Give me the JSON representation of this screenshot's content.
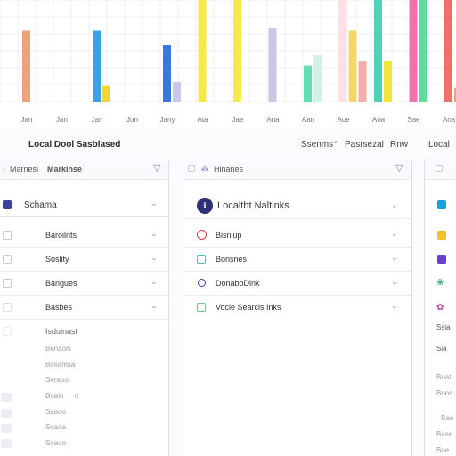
{
  "chart_data": {
    "type": "bar",
    "categories": [
      "Jan",
      "Jan",
      "Jan",
      "Jun",
      "Jany",
      "Ata",
      "Jae",
      "Ana",
      "Aan",
      "Aue",
      "Aoa",
      "Sae",
      "Ana"
    ],
    "xlabel": "",
    "ylabel": "",
    "grid": true,
    "ylim": [
      0,
      100
    ],
    "bars": [
      {
        "cat": 0,
        "value": 70,
        "color": "#f2a07b"
      },
      {
        "cat": 2,
        "value": 70,
        "color": "#3aa0e8"
      },
      {
        "cat": 2,
        "value": 16,
        "color": "#f2d43a"
      },
      {
        "cat": 4,
        "value": 56,
        "color": "#3a78dd"
      },
      {
        "cat": 4,
        "value": 20,
        "color": "#c8c8e8"
      },
      {
        "cat": 5,
        "value": 100,
        "color": "#f4ea4a"
      },
      {
        "cat": 6,
        "value": 100,
        "color": "#f4ea4a"
      },
      {
        "cat": 7,
        "value": 73,
        "color": "#c8c8e0"
      },
      {
        "cat": 8,
        "value": 36,
        "color": "#5ee0b4"
      },
      {
        "cat": 8,
        "value": 46,
        "color": "#d2f2e8"
      },
      {
        "cat": 9,
        "value": 100,
        "color": "#fde0e4"
      },
      {
        "cat": 9,
        "value": 70,
        "color": "#f4d66a"
      },
      {
        "cat": 9,
        "value": 40,
        "color": "#f3b0a8"
      },
      {
        "cat": 10,
        "value": 100,
        "color": "#4ed2b8"
      },
      {
        "cat": 10,
        "value": 40,
        "color": "#f2e43a"
      },
      {
        "cat": 11,
        "value": 100,
        "color": "#f070b0"
      },
      {
        "cat": 11,
        "value": 100,
        "color": "#5edc9c"
      },
      {
        "cat": 12,
        "value": 100,
        "color": "#f07068"
      },
      {
        "cat": 12,
        "value": 14,
        "color": "#f2a07b"
      }
    ]
  },
  "section": {
    "title": "Local Dool Sasblased",
    "links": [
      "Ssenms",
      "Pasrsezal",
      "Rnw",
      "Local"
    ]
  },
  "panels": {
    "left": {
      "header": [
        "Marnesl",
        "Markinse"
      ],
      "rows": [
        "Schama",
        "Baroilnts",
        "Soslity",
        "Bangues",
        "Basbes",
        "Isduinast"
      ],
      "ghost": [
        "Benaois",
        "Bosamsa",
        "Seraoo",
        "Bnaio",
        "Saaoo",
        "Soaoa",
        "Soaoo"
      ]
    },
    "middle": {
      "header": "Hinanes",
      "title": "Localtht Naltinks",
      "rows": [
        "Bisniup",
        "Bonsnes",
        "DonaboDink",
        "Vocie Searcls Inks"
      ]
    },
    "right": {
      "rows": [
        "",
        "",
        "",
        "",
        "",
        "Ssia",
        "Sia"
      ],
      "ghost": [
        "Boat",
        "Bons",
        "Bae",
        "Base",
        "Bae"
      ]
    }
  },
  "colors": {
    "accent": "#3b3f9e",
    "red": "#d9414e",
    "green": "#2fae70",
    "teal": "#1aa0d8",
    "yellow": "#f1c12a",
    "purple": "#6a3fd0"
  }
}
